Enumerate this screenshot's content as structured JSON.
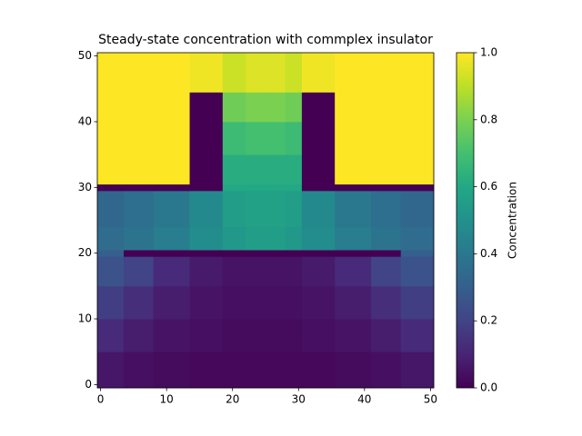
{
  "chart_data": {
    "type": "heatmap",
    "title": "Steady-state concentration with commplex insulator",
    "colormap": "viridis",
    "x_edges": [
      -0.5,
      3.5,
      8,
      13.5,
      18.5,
      22,
      25,
      28,
      30.5,
      35.5,
      41,
      45.5,
      50.5
    ],
    "y_edges": [
      -0.5,
      5,
      10,
      15,
      19.5,
      20.5,
      24,
      29.5,
      30.5,
      35,
      40,
      44.5,
      50.5
    ],
    "z": [
      [
        0.06,
        0.04,
        0.03,
        0.02,
        0.02,
        0.02,
        0.02,
        0.02,
        0.02,
        0.03,
        0.04,
        0.06
      ],
      [
        0.12,
        0.08,
        0.05,
        0.04,
        0.03,
        0.03,
        0.03,
        0.03,
        0.04,
        0.05,
        0.08,
        0.12
      ],
      [
        0.18,
        0.13,
        0.08,
        0.05,
        0.04,
        0.04,
        0.04,
        0.04,
        0.05,
        0.08,
        0.13,
        0.18
      ],
      [
        0.25,
        0.2,
        0.12,
        0.07,
        0.05,
        0.05,
        0.05,
        0.05,
        0.07,
        0.12,
        0.2,
        0.25
      ],
      [
        0.3,
        0,
        0,
        0,
        0,
        0,
        0,
        0,
        0,
        0,
        0,
        0.3
      ],
      [
        0.35,
        0.38,
        0.42,
        0.48,
        0.53,
        0.55,
        0.55,
        0.53,
        0.48,
        0.42,
        0.38,
        0.35
      ],
      [
        0.33,
        0.36,
        0.4,
        0.47,
        0.55,
        0.57,
        0.57,
        0.55,
        0.47,
        0.4,
        0.36,
        0.33
      ],
      [
        0,
        0,
        0,
        0,
        0.6,
        0.6,
        0.6,
        0.6,
        0,
        0,
        0,
        0
      ],
      [
        1,
        1,
        1,
        0,
        0.62,
        0.62,
        0.62,
        0.62,
        0,
        1,
        1,
        1
      ],
      [
        1,
        1,
        1,
        0,
        0.68,
        0.7,
        0.7,
        0.68,
        0,
        1,
        1,
        1
      ],
      [
        1,
        1,
        1,
        0,
        0.78,
        0.8,
        0.8,
        0.78,
        0,
        1,
        1,
        1
      ],
      [
        1,
        1,
        1,
        0.98,
        0.92,
        0.95,
        0.95,
        0.92,
        0.98,
        1,
        1,
        1
      ]
    ],
    "xlim": [
      -0.5,
      50.5
    ],
    "ylim": [
      -0.5,
      50.5
    ],
    "xticks": [
      0,
      10,
      20,
      30,
      40,
      50
    ],
    "yticks": [
      0,
      10,
      20,
      30,
      40,
      50
    ],
    "colorbar": {
      "label": "Concentration",
      "lim": [
        0,
        1
      ],
      "ticks": [
        {
          "value": 0,
          "label": "0.0"
        },
        0.2,
        0.4,
        0.6,
        0.8,
        {
          "value": 1,
          "label": "1.0"
        }
      ]
    }
  }
}
